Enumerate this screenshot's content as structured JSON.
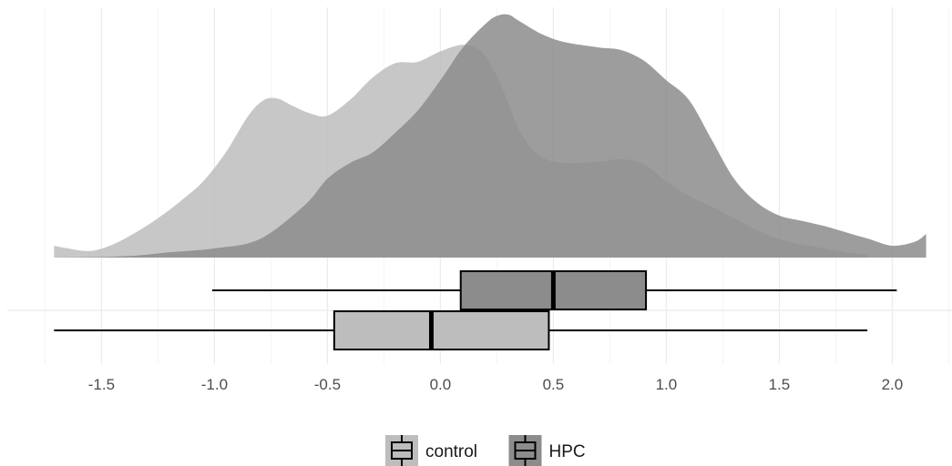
{
  "chart_data": {
    "type": "density_boxplot",
    "title": "",
    "xlabel": "",
    "ylabel": "",
    "xlim": [
      -1.76,
      2.2
    ],
    "grid": true,
    "legend_position": "bottom",
    "x_ticks": [
      {
        "value": -1.5,
        "label": "-1.5"
      },
      {
        "value": -1.0,
        "label": "-1.0"
      },
      {
        "value": -0.5,
        "label": "-0.5"
      },
      {
        "value": 0.0,
        "label": "0.0"
      },
      {
        "value": 0.5,
        "label": "0.5"
      },
      {
        "value": 1.0,
        "label": "1.0"
      },
      {
        "value": 1.5,
        "label": "1.5"
      },
      {
        "value": 2.0,
        "label": "2.0"
      }
    ],
    "series": [
      {
        "name": "control",
        "color": "#bdbdbd",
        "opacity": 0.85,
        "density": {
          "x": [
            -1.71,
            -1.65,
            -1.55,
            -1.45,
            -1.35,
            -1.25,
            -1.15,
            -1.05,
            -0.95,
            -0.85,
            -0.78,
            -0.72,
            -0.66,
            -0.58,
            -0.5,
            -0.4,
            -0.3,
            -0.2,
            -0.1,
            0.0,
            0.1,
            0.18,
            0.25,
            0.3,
            0.35,
            0.42,
            0.5,
            0.6,
            0.7,
            0.8,
            0.9,
            1.0,
            1.1,
            1.2,
            1.3,
            1.4,
            1.5,
            1.6,
            1.7,
            1.8,
            1.89
          ],
          "y": [
            0.09,
            0.07,
            0.05,
            0.1,
            0.19,
            0.3,
            0.43,
            0.58,
            0.8,
            1.08,
            1.2,
            1.21,
            1.16,
            1.1,
            1.08,
            1.2,
            1.37,
            1.48,
            1.49,
            1.57,
            1.62,
            1.57,
            1.38,
            1.18,
            0.97,
            0.8,
            0.73,
            0.72,
            0.73,
            0.75,
            0.71,
            0.58,
            0.47,
            0.39,
            0.3,
            0.21,
            0.14,
            0.1,
            0.07,
            0.04,
            0.02
          ]
        },
        "box": {
          "min": -1.71,
          "q1": -0.47,
          "median": -0.04,
          "q3": 0.48,
          "max": 1.89
        }
      },
      {
        "name": "HPC",
        "color": "#8c8c8c",
        "opacity": 0.85,
        "density": {
          "x": [
            -1.71,
            -1.4,
            -1.2,
            -1.0,
            -0.8,
            -0.6,
            -0.5,
            -0.4,
            -0.3,
            -0.2,
            -0.1,
            0.0,
            0.1,
            0.2,
            0.25,
            0.3,
            0.35,
            0.45,
            0.55,
            0.7,
            0.8,
            0.9,
            1.0,
            1.1,
            1.2,
            1.3,
            1.4,
            1.5,
            1.6,
            1.7,
            1.8,
            1.9,
            2.0,
            2.1,
            2.15
          ],
          "y": [
            0.0,
            0.01,
            0.04,
            0.07,
            0.14,
            0.4,
            0.6,
            0.72,
            0.8,
            0.95,
            1.12,
            1.35,
            1.6,
            1.78,
            1.84,
            1.85,
            1.8,
            1.7,
            1.64,
            1.6,
            1.58,
            1.5,
            1.35,
            1.2,
            0.9,
            0.6,
            0.42,
            0.32,
            0.28,
            0.24,
            0.19,
            0.14,
            0.09,
            0.12,
            0.18
          ]
        },
        "box": {
          "min": -1.01,
          "q1": 0.09,
          "median": 0.5,
          "q3": 0.91,
          "max": 2.02
        }
      }
    ],
    "legend": {
      "items": [
        {
          "label": "control",
          "color": "#bdbdbd"
        },
        {
          "label": "HPC",
          "color": "#8c8c8c"
        }
      ]
    }
  }
}
